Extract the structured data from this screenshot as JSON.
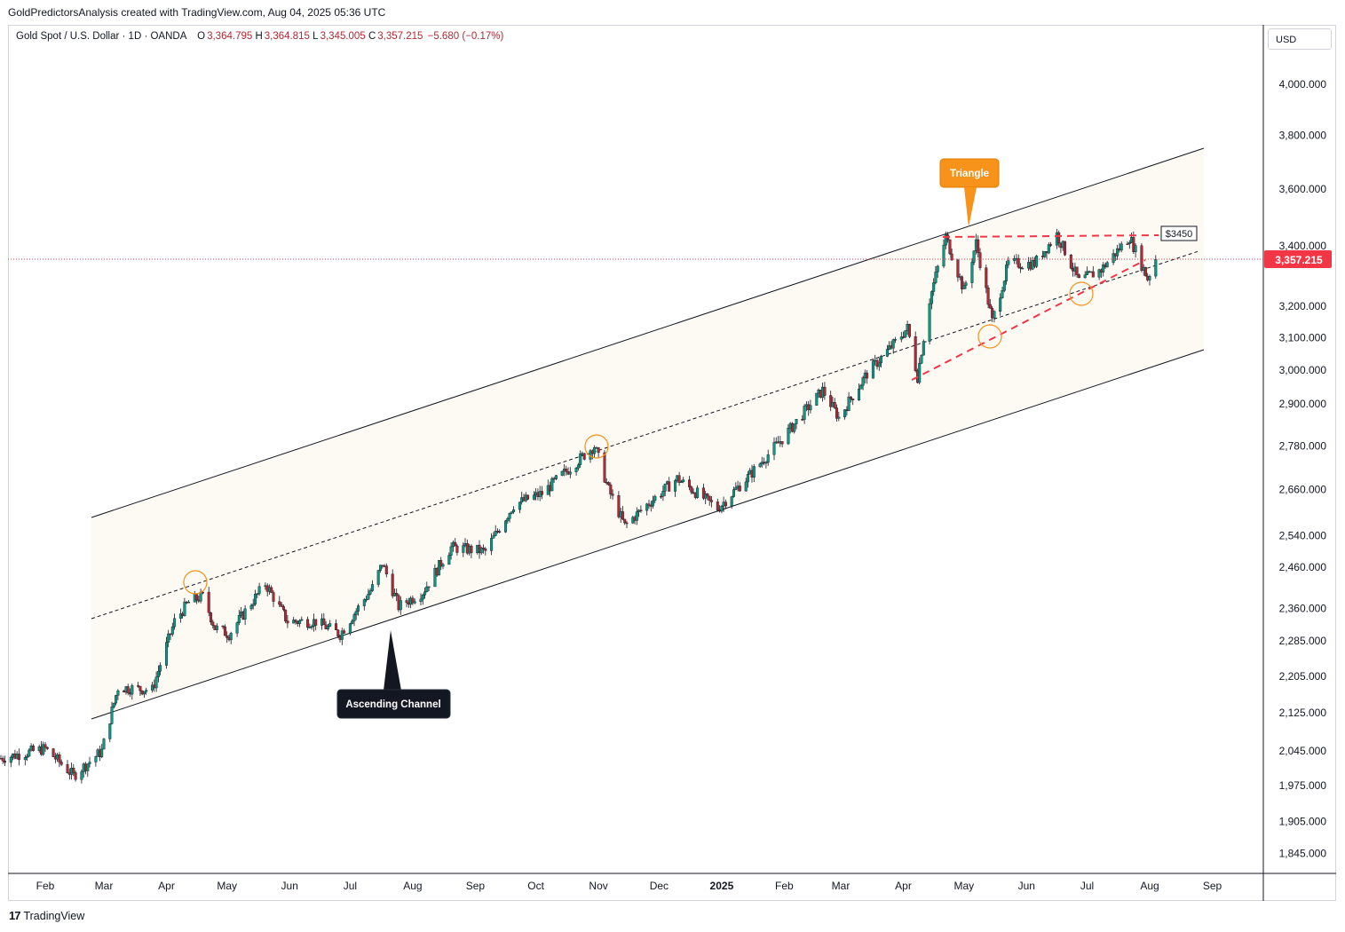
{
  "header": {
    "credit": "GoldPredictorsAnalysis created with TradingView.com, Aug 04, 2025 05:36 UTC"
  },
  "legend": {
    "symbol": "Gold Spot / U.S. Dollar · 1D · OANDA",
    "open_label": "O",
    "open": "3,364.795",
    "high_label": "H",
    "high": "3,364.815",
    "low_label": "L",
    "low": "3,345.005",
    "close_label": "C",
    "close": "3,357.215",
    "change": "−5.680 (−0.17%)"
  },
  "currency_button": "USD",
  "footer": {
    "logo_mark": "17",
    "brand": "TradingView"
  },
  "colors": {
    "up": "#089981",
    "down": "#b22833",
    "channel": "#131722",
    "triangle": "#f23645",
    "highlight": "#f7931a",
    "price_tag": "#f23645"
  },
  "chart_data": {
    "type": "candlestick",
    "title": "Gold Spot / U.S. Dollar · 1D · OANDA",
    "y_scale": "log",
    "y_ticks": [
      "4,000.000",
      "3,800.000",
      "3,600.000",
      "3,400.000",
      "3,200.000",
      "3,100.000",
      "3,000.000",
      "2,900.000",
      "2,780.000",
      "2,660.000",
      "2,540.000",
      "2,460.000",
      "2,360.000",
      "2,285.000",
      "2,205.000",
      "2,125.000",
      "2,045.000",
      "1,975.000",
      "1,905.000",
      "1,845.000"
    ],
    "x_ticks": [
      "Feb",
      "Mar",
      "Apr",
      "May",
      "Jun",
      "Jul",
      "Aug",
      "Sep",
      "Oct",
      "Nov",
      "Dec",
      "2025",
      "Feb",
      "Mar",
      "Apr",
      "May",
      "Jun",
      "Jul",
      "Aug",
      "Sep"
    ],
    "last_price": "3,357.215",
    "price_path": [
      {
        "date": "2024-01-10",
        "price": 2030
      },
      {
        "date": "2024-02-01",
        "price": 2050
      },
      {
        "date": "2024-02-15",
        "price": 1995
      },
      {
        "date": "2024-02-29",
        "price": 2045
      },
      {
        "date": "2024-03-08",
        "price": 2180
      },
      {
        "date": "2024-03-25",
        "price": 2175
      },
      {
        "date": "2024-04-05",
        "price": 2330
      },
      {
        "date": "2024-04-12",
        "price": 2375
      },
      {
        "date": "2024-04-19",
        "price": 2390
      },
      {
        "date": "2024-04-25",
        "price": 2315
      },
      {
        "date": "2024-05-02",
        "price": 2300
      },
      {
        "date": "2024-05-20",
        "price": 2420
      },
      {
        "date": "2024-05-31",
        "price": 2330
      },
      {
        "date": "2024-06-14",
        "price": 2330
      },
      {
        "date": "2024-06-26",
        "price": 2300
      },
      {
        "date": "2024-07-12",
        "price": 2410
      },
      {
        "date": "2024-07-17",
        "price": 2470
      },
      {
        "date": "2024-07-25",
        "price": 2365
      },
      {
        "date": "2024-08-06",
        "price": 2400
      },
      {
        "date": "2024-08-20",
        "price": 2510
      },
      {
        "date": "2024-09-06",
        "price": 2500
      },
      {
        "date": "2024-09-20",
        "price": 2620
      },
      {
        "date": "2024-10-04",
        "price": 2650
      },
      {
        "date": "2024-10-22",
        "price": 2740
      },
      {
        "date": "2024-10-30",
        "price": 2780
      },
      {
        "date": "2024-11-06",
        "price": 2660
      },
      {
        "date": "2024-11-14",
        "price": 2565
      },
      {
        "date": "2024-11-25",
        "price": 2620
      },
      {
        "date": "2024-12-10",
        "price": 2690
      },
      {
        "date": "2024-12-30",
        "price": 2610
      },
      {
        "date": "2025-01-15",
        "price": 2700
      },
      {
        "date": "2025-01-31",
        "price": 2800
      },
      {
        "date": "2025-02-20",
        "price": 2940
      },
      {
        "date": "2025-02-28",
        "price": 2860
      },
      {
        "date": "2025-03-14",
        "price": 2990
      },
      {
        "date": "2025-03-28",
        "price": 3085
      },
      {
        "date": "2025-04-03",
        "price": 3130
      },
      {
        "date": "2025-04-08",
        "price": 2980
      },
      {
        "date": "2025-04-14",
        "price": 3220
      },
      {
        "date": "2025-04-22",
        "price": 3430
      },
      {
        "date": "2025-05-01",
        "price": 3250
      },
      {
        "date": "2025-05-07",
        "price": 3410
      },
      {
        "date": "2025-05-15",
        "price": 3150
      },
      {
        "date": "2025-05-23",
        "price": 3340
      },
      {
        "date": "2025-06-05",
        "price": 3340
      },
      {
        "date": "2025-06-16",
        "price": 3440
      },
      {
        "date": "2025-06-27",
        "price": 3280
      },
      {
        "date": "2025-07-08",
        "price": 3320
      },
      {
        "date": "2025-07-22",
        "price": 3430
      },
      {
        "date": "2025-07-31",
        "price": 3290
      },
      {
        "date": "2025-08-04",
        "price": 3357
      }
    ],
    "annotations": [
      {
        "text": "Triangle",
        "kind": "callout"
      },
      {
        "text": "Ascending Channel",
        "kind": "callout"
      },
      {
        "text": "$3450",
        "kind": "price-label"
      }
    ]
  }
}
